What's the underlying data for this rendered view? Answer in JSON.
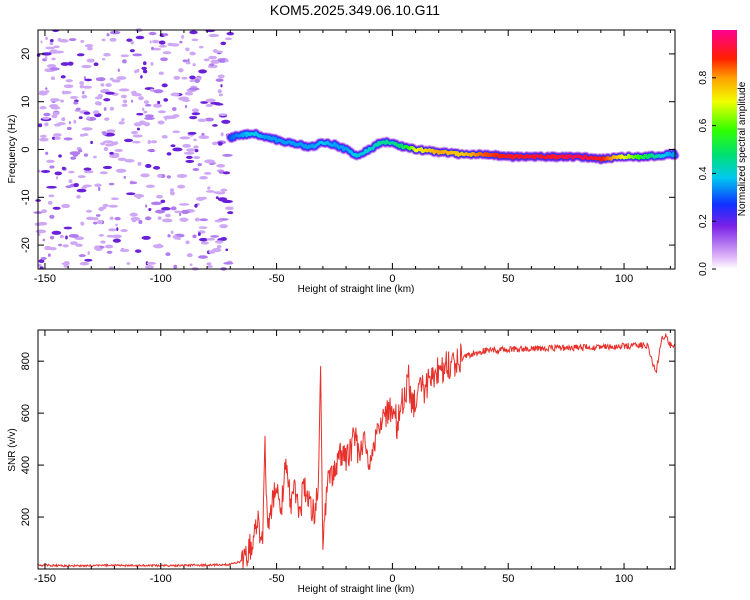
{
  "title": "KOM5.2025.349.06.10.G11",
  "colors": {
    "snr_line": "#e8302a",
    "axes": "#000000",
    "scatter_light": "#cfa8f5",
    "scatter_mid": "#b07cef",
    "scatter_dark": "#6a1fd8"
  },
  "chart_data": [
    {
      "type": "heatmap",
      "name": "spectrogram",
      "xlabel": "Height of straight line (km)",
      "ylabel": "Frequency (Hz)",
      "xlim": [
        -153,
        122
      ],
      "ylim": [
        -25,
        25
      ],
      "xticks": [
        -150,
        -100,
        -50,
        0,
        50,
        100
      ],
      "yticks": [
        -20,
        -10,
        0,
        10,
        20
      ],
      "colorbar": {
        "label": "Normalized spectral amplitude",
        "range": [
          0,
          1
        ],
        "ticks": [
          "0.0",
          "0.2",
          "0.4",
          "0.6",
          "0.8"
        ]
      },
      "noise_region_x": [
        -153,
        -70
      ],
      "ridge": {
        "description": "Frequency ridge center (Hz) versus height (km)",
        "x": [
          -70,
          -65,
          -60,
          -55,
          -50,
          -45,
          -40,
          -35,
          -30,
          -25,
          -20,
          -15,
          -10,
          -5,
          0,
          5,
          10,
          20,
          30,
          40,
          50,
          60,
          70,
          80,
          90,
          100,
          110,
          120
        ],
        "freq": [
          2.5,
          3.0,
          3.5,
          2.5,
          2.0,
          1.5,
          1.0,
          0.5,
          1.5,
          1.0,
          0.0,
          -1.5,
          0.0,
          1.5,
          1.5,
          0.5,
          0.0,
          -0.5,
          -1.0,
          -1.0,
          -1.5,
          -1.5,
          -1.5,
          -1.5,
          -2.0,
          -1.5,
          -1.5,
          -1.0
        ],
        "amplitude": [
          0.3,
          0.35,
          0.4,
          0.35,
          0.35,
          0.35,
          0.35,
          0.35,
          0.38,
          0.35,
          0.35,
          0.4,
          0.4,
          0.45,
          0.45,
          0.5,
          0.7,
          0.8,
          0.75,
          0.85,
          0.9,
          0.92,
          0.92,
          0.95,
          0.9,
          0.7,
          0.5,
          0.35
        ]
      }
    },
    {
      "type": "line",
      "name": "snr",
      "xlabel": "Height of straight line (km)",
      "ylabel": "SNR (v/v)",
      "xlim": [
        -153,
        122
      ],
      "ylim": [
        0,
        920
      ],
      "xticks": [
        -150,
        -100,
        -50,
        0,
        50,
        100
      ],
      "yticks": [
        200,
        400,
        600,
        800
      ],
      "series": [
        {
          "name": "SNR",
          "description": "Approximate SNR envelope (v/v)",
          "x": [
            -153,
            -140,
            -120,
            -100,
            -80,
            -70,
            -65,
            -62,
            -60,
            -58,
            -56,
            -55,
            -54,
            -52,
            -50,
            -48,
            -46,
            -44,
            -42,
            -40,
            -38,
            -36,
            -34,
            -32,
            -31,
            -30,
            -29,
            -28,
            -26,
            -24,
            -22,
            -20,
            -18,
            -16,
            -14,
            -12,
            -10,
            -8,
            -6,
            -4,
            -2,
            0,
            2,
            4,
            6,
            7,
            8,
            10,
            12,
            14,
            16,
            18,
            20,
            25,
            30,
            35,
            40,
            50,
            60,
            70,
            80,
            90,
            100,
            105,
            110,
            112,
            114,
            116,
            118,
            120,
            122
          ],
          "values": [
            15,
            12,
            14,
            13,
            15,
            18,
            30,
            80,
            120,
            170,
            130,
            515,
            180,
            260,
            350,
            230,
            400,
            250,
            310,
            220,
            330,
            280,
            200,
            300,
            750,
            40,
            240,
            320,
            360,
            410,
            450,
            430,
            470,
            500,
            420,
            520,
            400,
            460,
            540,
            560,
            610,
            620,
            560,
            640,
            700,
            760,
            610,
            650,
            700,
            690,
            720,
            740,
            770,
            790,
            810,
            830,
            840,
            845,
            848,
            850,
            852,
            855,
            858,
            860,
            862,
            800,
            760,
            880,
            900,
            860,
            865
          ]
        }
      ]
    }
  ]
}
